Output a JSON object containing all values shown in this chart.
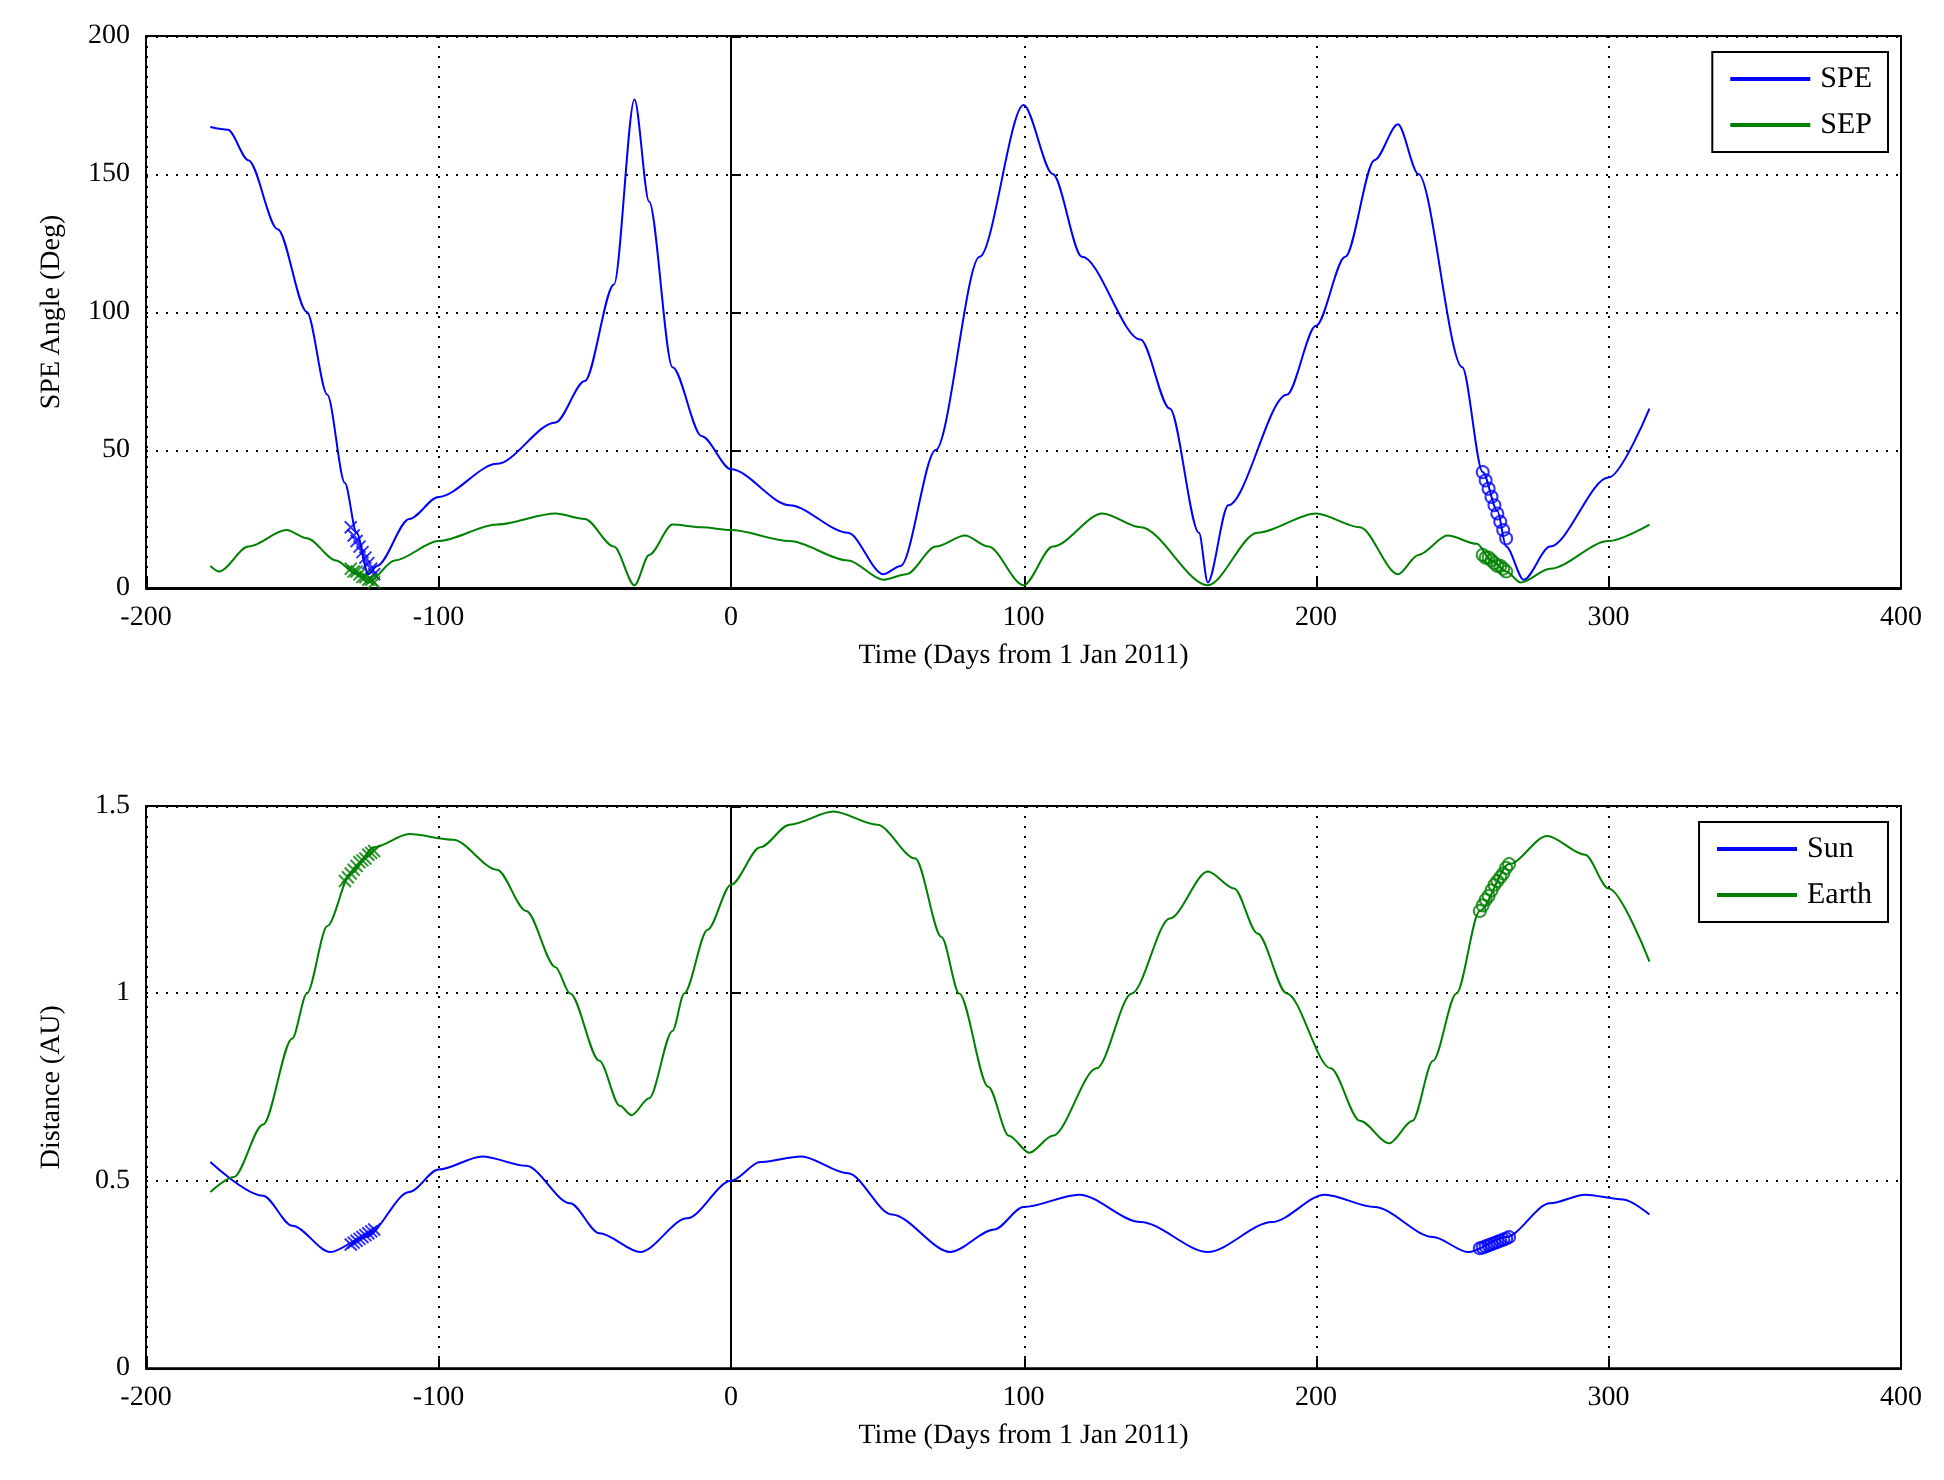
{
  "chart_data": [
    {
      "type": "line",
      "xlabel": "Time (Days from 1 Jan 2011)",
      "ylabel": "SPE Angle (Deg)",
      "xlim": [
        -200,
        400
      ],
      "xticks": [
        -200,
        -100,
        0,
        100,
        200,
        300,
        400
      ],
      "ylim": [
        0,
        200
      ],
      "yticks": [
        0,
        50,
        100,
        150,
        200
      ],
      "grid": true,
      "legend": "top right",
      "marker": "none",
      "series": [
        {
          "name": "SPE",
          "color": "#0000ff",
          "x": [
            -178,
            -172,
            -165,
            -155,
            -145,
            -138,
            -132,
            -128,
            -124,
            -121,
            -110,
            -100,
            -80,
            -60,
            -50,
            -40,
            -33,
            -28,
            -20,
            -10,
            0,
            20,
            40,
            52,
            58,
            70,
            85,
            100,
            110,
            120,
            140,
            150,
            160,
            163,
            170,
            190,
            200,
            210,
            220,
            228,
            235,
            250,
            257,
            262,
            265,
            271,
            280,
            300,
            314
          ],
          "values": [
            167,
            166,
            155,
            130,
            100,
            70,
            38,
            20,
            5,
            8,
            25,
            33,
            45,
            60,
            75,
            110,
            177,
            140,
            80,
            55,
            43,
            30,
            20,
            5,
            8,
            50,
            120,
            175,
            150,
            120,
            90,
            65,
            20,
            2,
            30,
            70,
            95,
            120,
            155,
            168,
            150,
            80,
            42,
            28,
            15,
            3,
            15,
            40,
            65
          ]
        },
        {
          "name": "SEP",
          "color": "#008000",
          "x": [
            -178,
            -175,
            -165,
            -152,
            -145,
            -135,
            -128,
            -124,
            -115,
            -100,
            -80,
            -60,
            -50,
            -40,
            -33,
            -28,
            -20,
            -10,
            0,
            20,
            40,
            52,
            60,
            70,
            80,
            88,
            100,
            110,
            127,
            140,
            163,
            180,
            200,
            215,
            228,
            235,
            245,
            255,
            260,
            265,
            270,
            280,
            300,
            314
          ],
          "values": [
            8,
            6,
            15,
            21,
            18,
            10,
            5,
            2,
            10,
            17,
            23,
            27,
            25,
            15,
            1,
            12,
            23,
            22,
            21,
            17,
            10,
            3,
            5,
            15,
            19,
            15,
            1,
            15,
            27,
            22,
            1,
            20,
            27,
            22,
            5,
            12,
            19,
            16,
            10,
            6,
            2,
            7,
            17,
            23
          ]
        },
        {
          "type": "scatter",
          "marker": "cross",
          "color": "#0000ff",
          "x": [
            -130,
            -129,
            -128,
            -127,
            -126,
            -125,
            -124,
            -123,
            -122
          ],
          "values": [
            22,
            19,
            17,
            15,
            13,
            11,
            9,
            7,
            5
          ]
        },
        {
          "type": "scatter",
          "marker": "circle",
          "color": "#0000ff",
          "x": [
            257,
            258,
            259,
            260,
            261,
            262,
            263,
            264,
            265
          ],
          "values": [
            42,
            39,
            36,
            33,
            30,
            27,
            24,
            21,
            18
          ]
        },
        {
          "type": "scatter",
          "marker": "cross",
          "color": "#008000",
          "x": [
            -130,
            -129,
            -128,
            -127,
            -126,
            -125,
            -124,
            -123,
            -122
          ],
          "values": [
            7,
            6,
            6,
            5,
            4,
            4,
            3,
            3,
            2
          ]
        },
        {
          "type": "scatter",
          "marker": "circle",
          "color": "#008000",
          "x": [
            257,
            258,
            259,
            260,
            261,
            262,
            263,
            264,
            265
          ],
          "values": [
            12,
            11,
            11,
            10,
            9,
            8,
            8,
            7,
            6
          ]
        }
      ]
    },
    {
      "type": "line",
      "xlabel": "Time (Days from 1 Jan 2011)",
      "ylabel": "Distance (AU)",
      "xlim": [
        -200,
        400
      ],
      "xticks": [
        -200,
        -100,
        0,
        100,
        200,
        300,
        400
      ],
      "ylim": [
        0,
        1.5
      ],
      "yticks": [
        0,
        0.5,
        1,
        1.5
      ],
      "grid": true,
      "legend": "top right",
      "marker": "none",
      "series": [
        {
          "name": "Sun",
          "color": "#0000ff",
          "x": [
            -178,
            -160,
            -150,
            -137,
            -125,
            -110,
            -100,
            -85,
            -70,
            -55,
            -45,
            -31,
            -15,
            0,
            10,
            24,
            40,
            55,
            75,
            90,
            100,
            119,
            140,
            163,
            185,
            203,
            220,
            240,
            252,
            265,
            280,
            292,
            305,
            314
          ],
          "values": [
            0.55,
            0.46,
            0.38,
            0.31,
            0.35,
            0.47,
            0.53,
            0.565,
            0.54,
            0.44,
            0.36,
            0.31,
            0.4,
            0.5,
            0.55,
            0.565,
            0.52,
            0.41,
            0.31,
            0.37,
            0.43,
            0.463,
            0.39,
            0.31,
            0.39,
            0.463,
            0.43,
            0.35,
            0.31,
            0.35,
            0.44,
            0.463,
            0.45,
            0.41
          ]
        },
        {
          "name": "Earth",
          "color": "#008000",
          "x": [
            -178,
            -170,
            -160,
            -150,
            -145,
            -138,
            -130,
            -122,
            -110,
            -95,
            -80,
            -70,
            -60,
            -55,
            -45,
            -38,
            -34,
            -28,
            -20,
            -16,
            -8,
            0,
            10,
            20,
            35,
            50,
            63,
            72,
            78,
            88,
            95,
            102,
            110,
            125,
            137,
            150,
            163,
            172,
            180,
            190,
            205,
            215,
            225,
            233,
            240,
            248,
            256,
            266,
            279,
            292,
            300,
            314
          ],
          "values": [
            0.47,
            0.51,
            0.65,
            0.88,
            1.0,
            1.18,
            1.32,
            1.39,
            1.425,
            1.41,
            1.33,
            1.22,
            1.07,
            1.0,
            0.82,
            0.7,
            0.675,
            0.72,
            0.9,
            1.0,
            1.17,
            1.29,
            1.39,
            1.45,
            1.485,
            1.45,
            1.36,
            1.15,
            1.0,
            0.75,
            0.62,
            0.575,
            0.62,
            0.8,
            1.0,
            1.2,
            1.325,
            1.28,
            1.16,
            1.0,
            0.8,
            0.66,
            0.6,
            0.66,
            0.82,
            1.0,
            1.22,
            1.345,
            1.42,
            1.37,
            1.28,
            1.085
          ]
        },
        {
          "type": "scatter",
          "marker": "cross",
          "color": "#0000ff",
          "x": [
            -130,
            -129,
            -128,
            -127,
            -126,
            -125,
            -124,
            -123,
            -122
          ],
          "values": [
            0.33,
            0.335,
            0.34,
            0.345,
            0.35,
            0.355,
            0.36,
            0.365,
            0.37
          ]
        },
        {
          "type": "scatter",
          "marker": "circle",
          "color": "#0000ff",
          "x": [
            256,
            257,
            258,
            259,
            260,
            261,
            262,
            263,
            264,
            265,
            266
          ],
          "values": [
            0.32,
            0.322,
            0.325,
            0.328,
            0.331,
            0.334,
            0.337,
            0.34,
            0.343,
            0.346,
            0.35
          ]
        },
        {
          "type": "scatter",
          "marker": "cross",
          "color": "#008000",
          "x": [
            -132,
            -131,
            -130,
            -129,
            -128,
            -127,
            -126,
            -125,
            -124,
            -123,
            -122
          ],
          "values": [
            1.3,
            1.31,
            1.32,
            1.33,
            1.34,
            1.35,
            1.355,
            1.36,
            1.37,
            1.375,
            1.38
          ]
        },
        {
          "type": "scatter",
          "marker": "circle",
          "color": "#008000",
          "x": [
            256,
            257,
            258,
            259,
            260,
            261,
            262,
            263,
            264,
            265,
            266
          ],
          "values": [
            1.22,
            1.235,
            1.25,
            1.26,
            1.275,
            1.29,
            1.3,
            1.31,
            1.32,
            1.335,
            1.345
          ]
        }
      ]
    }
  ]
}
